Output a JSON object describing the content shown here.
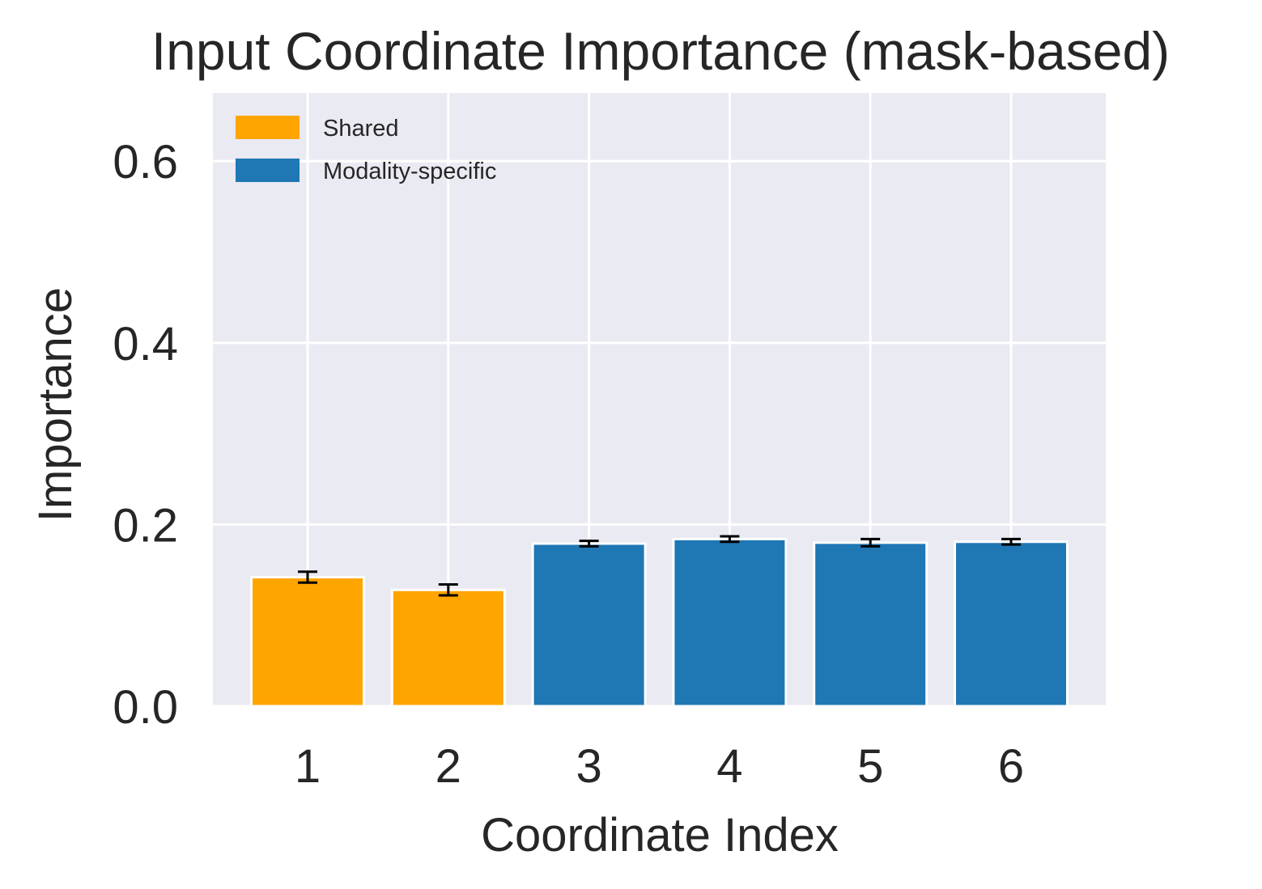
{
  "chart_data": {
    "type": "bar",
    "title": "Input Coordinate Importance (mask-based)",
    "xlabel": "Coordinate Index",
    "ylabel": "Importance",
    "categories": [
      "1",
      "2",
      "3",
      "4",
      "5",
      "6"
    ],
    "values": [
      0.142,
      0.128,
      0.179,
      0.184,
      0.18,
      0.181
    ],
    "errors": [
      0.006,
      0.006,
      0.003,
      0.003,
      0.004,
      0.003
    ],
    "groups": [
      "Shared",
      "Shared",
      "Modality-specific",
      "Modality-specific",
      "Modality-specific",
      "Modality-specific"
    ],
    "legend": [
      {
        "label": "Shared",
        "color": "#FFA500"
      },
      {
        "label": "Modality-specific",
        "color": "#1F77B4"
      }
    ],
    "legend_position": "upper-left",
    "ylim": [
      0,
      0.675
    ],
    "yticks": [
      0.0,
      0.2,
      0.4,
      0.6
    ],
    "ytick_labels": [
      "0.0",
      "0.2",
      "0.4",
      "0.6"
    ],
    "grid": true,
    "background_color": "#EAEAF2"
  }
}
